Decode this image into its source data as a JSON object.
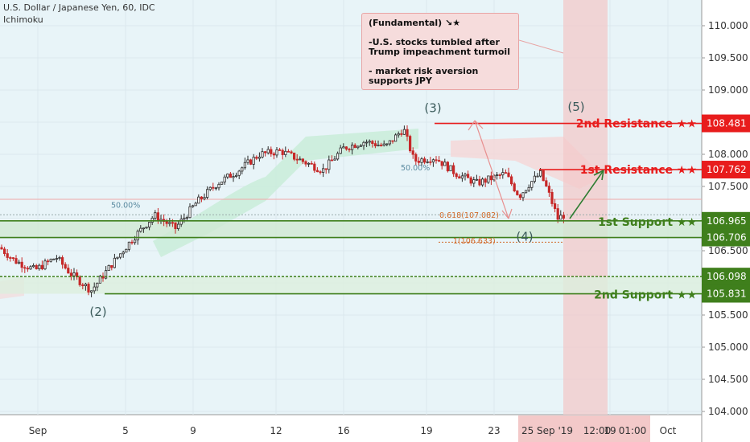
{
  "header": {
    "symbol_label": "U.S. Dollar / Japanese Yen, 60, IDC",
    "indicator_label": "Ichimoku"
  },
  "annotation": {
    "title": "(Fundamental) ↘★",
    "line1": "-U.S. stocks tumbled after Trump impeachment turmoil",
    "line2": "-  market risk aversion supports JPY"
  },
  "colors": {
    "background": "#e8f4f8",
    "resistance": "#e81c1c",
    "support": "#3f7f1c",
    "candle_up": "#2a2a2a",
    "candle_down": "#c62828",
    "cloud_green": "#c9ecd9",
    "cloud_red": "#f5d6d6",
    "highlight_band": "#f3c9c9"
  },
  "chart_data": {
    "type": "candlestick",
    "y_axis": {
      "range": [
        103.95,
        110.3
      ],
      "ticks": [
        "104.000",
        "104.500",
        "105.000",
        "105.500",
        "106.000",
        "106.500",
        "107.000",
        "107.500",
        "108.000",
        "108.500",
        "109.000",
        "109.500",
        "110.000"
      ]
    },
    "x_axis": {
      "ticks": [
        "Sep",
        "5",
        "9",
        "12",
        "16",
        "19",
        "23",
        "25 Sep '19",
        "12:00",
        "19",
        "01:00",
        "Oct"
      ]
    },
    "levels": [
      {
        "name": "2nd Resistance ★★",
        "value": 108.481,
        "label": "108.481",
        "kind": "resistance"
      },
      {
        "name": "1st Resistance ★★",
        "value": 107.762,
        "label": "107.762",
        "kind": "resistance"
      },
      {
        "name": "1st Support ★★",
        "value": 106.965,
        "label": "106.965",
        "kind": "support"
      },
      {
        "name": "",
        "value": 106.706,
        "label": "106.706",
        "kind": "support"
      },
      {
        "name": "",
        "value": 106.098,
        "label": "106.098",
        "kind": "support"
      },
      {
        "name": "2nd Support ★★",
        "value": 105.831,
        "label": "105.831",
        "kind": "support"
      }
    ],
    "fib_labels": [
      "50.00%",
      "50.00%",
      "0.618(107.082)",
      "1(106.633)"
    ],
    "wave_labels": [
      {
        "label": "(2)",
        "value": 105.55
      },
      {
        "label": "(3)",
        "value": 108.72
      },
      {
        "label": "(4)",
        "value": 106.72
      },
      {
        "label": "(5)",
        "value": 108.74
      }
    ],
    "price_anchors": [
      [
        0,
        106.55
      ],
      [
        0.02,
        106.35
      ],
      [
        0.05,
        106.2
      ],
      [
        0.08,
        106.4
      ],
      [
        0.1,
        106.15
      ],
      [
        0.13,
        105.88
      ],
      [
        0.16,
        106.3
      ],
      [
        0.19,
        106.7
      ],
      [
        0.22,
        107.05
      ],
      [
        0.25,
        106.85
      ],
      [
        0.28,
        107.25
      ],
      [
        0.31,
        107.55
      ],
      [
        0.34,
        107.75
      ],
      [
        0.37,
        108.0
      ],
      [
        0.4,
        108.05
      ],
      [
        0.43,
        107.9
      ],
      [
        0.46,
        107.75
      ],
      [
        0.49,
        108.1
      ],
      [
        0.52,
        108.2
      ],
      [
        0.55,
        108.12
      ],
      [
        0.575,
        108.4
      ],
      [
        0.59,
        107.9
      ],
      [
        0.62,
        107.95
      ],
      [
        0.65,
        107.7
      ],
      [
        0.68,
        107.55
      ],
      [
        0.72,
        107.7
      ],
      [
        0.74,
        107.35
      ],
      [
        0.755,
        107.55
      ],
      [
        0.77,
        107.7
      ],
      [
        0.78,
        107.45
      ],
      [
        0.795,
        107.0
      ],
      [
        0.81,
        107.1
      ],
      [
        0.825,
        107.3
      ]
    ]
  }
}
